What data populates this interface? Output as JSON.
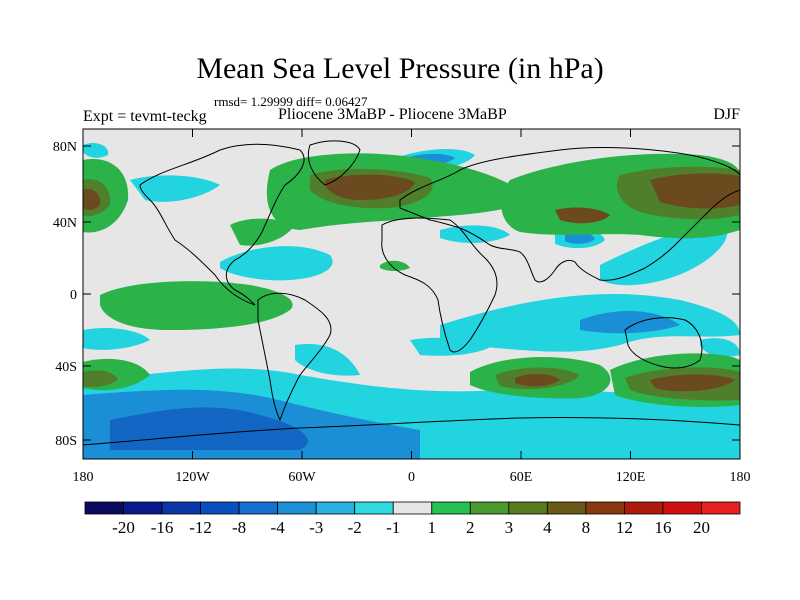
{
  "title": "Mean Sea Level Pressure (in hPa)",
  "stats": "rmsd= 1.29999 diff= 0.06427",
  "left_label": "Expt = tevmt-teckg",
  "center_label": "Pliocene   3MaBP - Pliocene   3MaBP",
  "right_label": "DJF",
  "lat_ticks": [
    "80N",
    "40N",
    "0",
    "40S",
    "80S"
  ],
  "lon_ticks": [
    "180",
    "120W",
    "60W",
    "0",
    "60E",
    "120E",
    "180"
  ],
  "colorbar": {
    "labels": [
      "-20",
      "-16",
      "-12",
      "-8",
      "-4",
      "-3",
      "-2",
      "-1",
      "1",
      "2",
      "3",
      "4",
      "8",
      "12",
      "16",
      "20"
    ],
    "colors": [
      "#0b0b5e",
      "#0a1a8a",
      "#0a36a8",
      "#0a4fc0",
      "#1670d0",
      "#1e90d8",
      "#28b0e0",
      "#30d8e0",
      "#e6e6e6",
      "#28c050",
      "#4a9a30",
      "#5a7a20",
      "#6a5a18",
      "#8a3a10",
      "#b01a0a",
      "#d01010",
      "#e82020"
    ]
  },
  "colors": {
    "background": "#e6e6e6",
    "green": "#2bb34a",
    "dark_green": "#4f7f2b",
    "brown": "#6b4a1f",
    "cyan": "#22d3e0",
    "blue": "#1a8fd6",
    "deep_blue": "#1466c4"
  }
}
